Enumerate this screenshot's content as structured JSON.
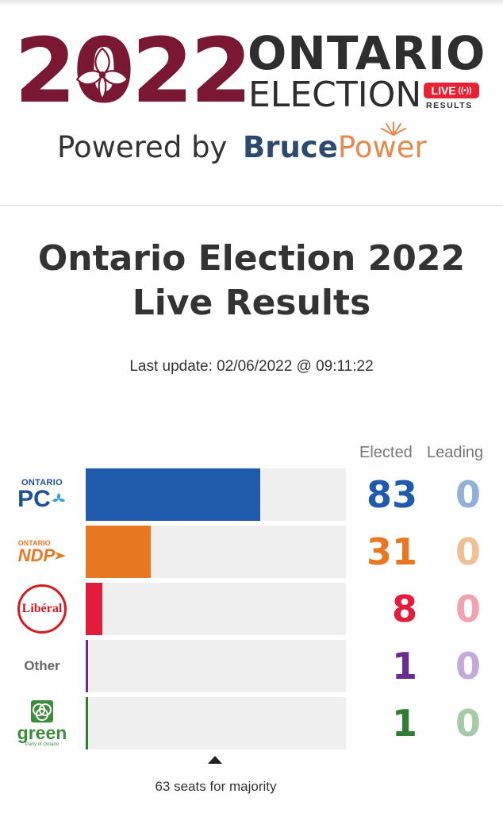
{
  "banner": {
    "year_digits": [
      "2",
      "0",
      "2",
      "2"
    ],
    "ontario": "ONTARIO",
    "election": "ELECTION",
    "live": "LIVE",
    "results": "RESULTS",
    "powered_by": "Powered by",
    "sponsor_part1": "Bruce",
    "sponsor_part2": "Power",
    "brand_color": "#7a1733",
    "live_color": "#e52333"
  },
  "title_line1": "Ontario Election 2022",
  "title_line2": "Live Results",
  "last_update": "Last update: 02/06/2022 @ 09:11:22",
  "chart_data": {
    "type": "bar",
    "orientation": "horizontal",
    "max_seats": 124,
    "columns": [
      "Elected",
      "Leading"
    ],
    "majority_note": "63 seats for majority",
    "majority_value": 63,
    "categories": [
      "ONTARIO PC",
      "ONTARIO NDP",
      "Libéral",
      "Other",
      "green"
    ],
    "series": [
      {
        "name": "Elected",
        "values": [
          83,
          31,
          8,
          1,
          1
        ]
      },
      {
        "name": "Leading",
        "values": [
          0,
          0,
          0,
          0,
          0
        ]
      }
    ],
    "parties": [
      {
        "logo_small": "ONTARIO",
        "logo_big": "PC",
        "elected": 83,
        "leading": 0,
        "color": "#1f5aad",
        "leading_color": "#93b0d8",
        "text_color": "#1f5aad"
      },
      {
        "logo_small": "ONTARIO",
        "logo_big": "NDP",
        "elected": 31,
        "leading": 0,
        "color": "#e87722",
        "leading_color": "#f1bf96",
        "text_color": "#e87722"
      },
      {
        "logo_big": "Libéral",
        "elected": 8,
        "leading": 0,
        "color": "#e31c3d",
        "leading_color": "#f2a3ae",
        "text_color": "#e31c3d"
      },
      {
        "logo_big": "Other",
        "elected": 1,
        "leading": 0,
        "color": "#6a2c91",
        "leading_color": "#c5a9d8",
        "text_color": "#6a2c91"
      },
      {
        "logo_big": "green",
        "logo_sub": "Party of Ontario",
        "elected": 1,
        "leading": 0,
        "color": "#2e7d32",
        "leading_color": "#a8caa9",
        "text_color": "#2e7d32"
      }
    ]
  }
}
